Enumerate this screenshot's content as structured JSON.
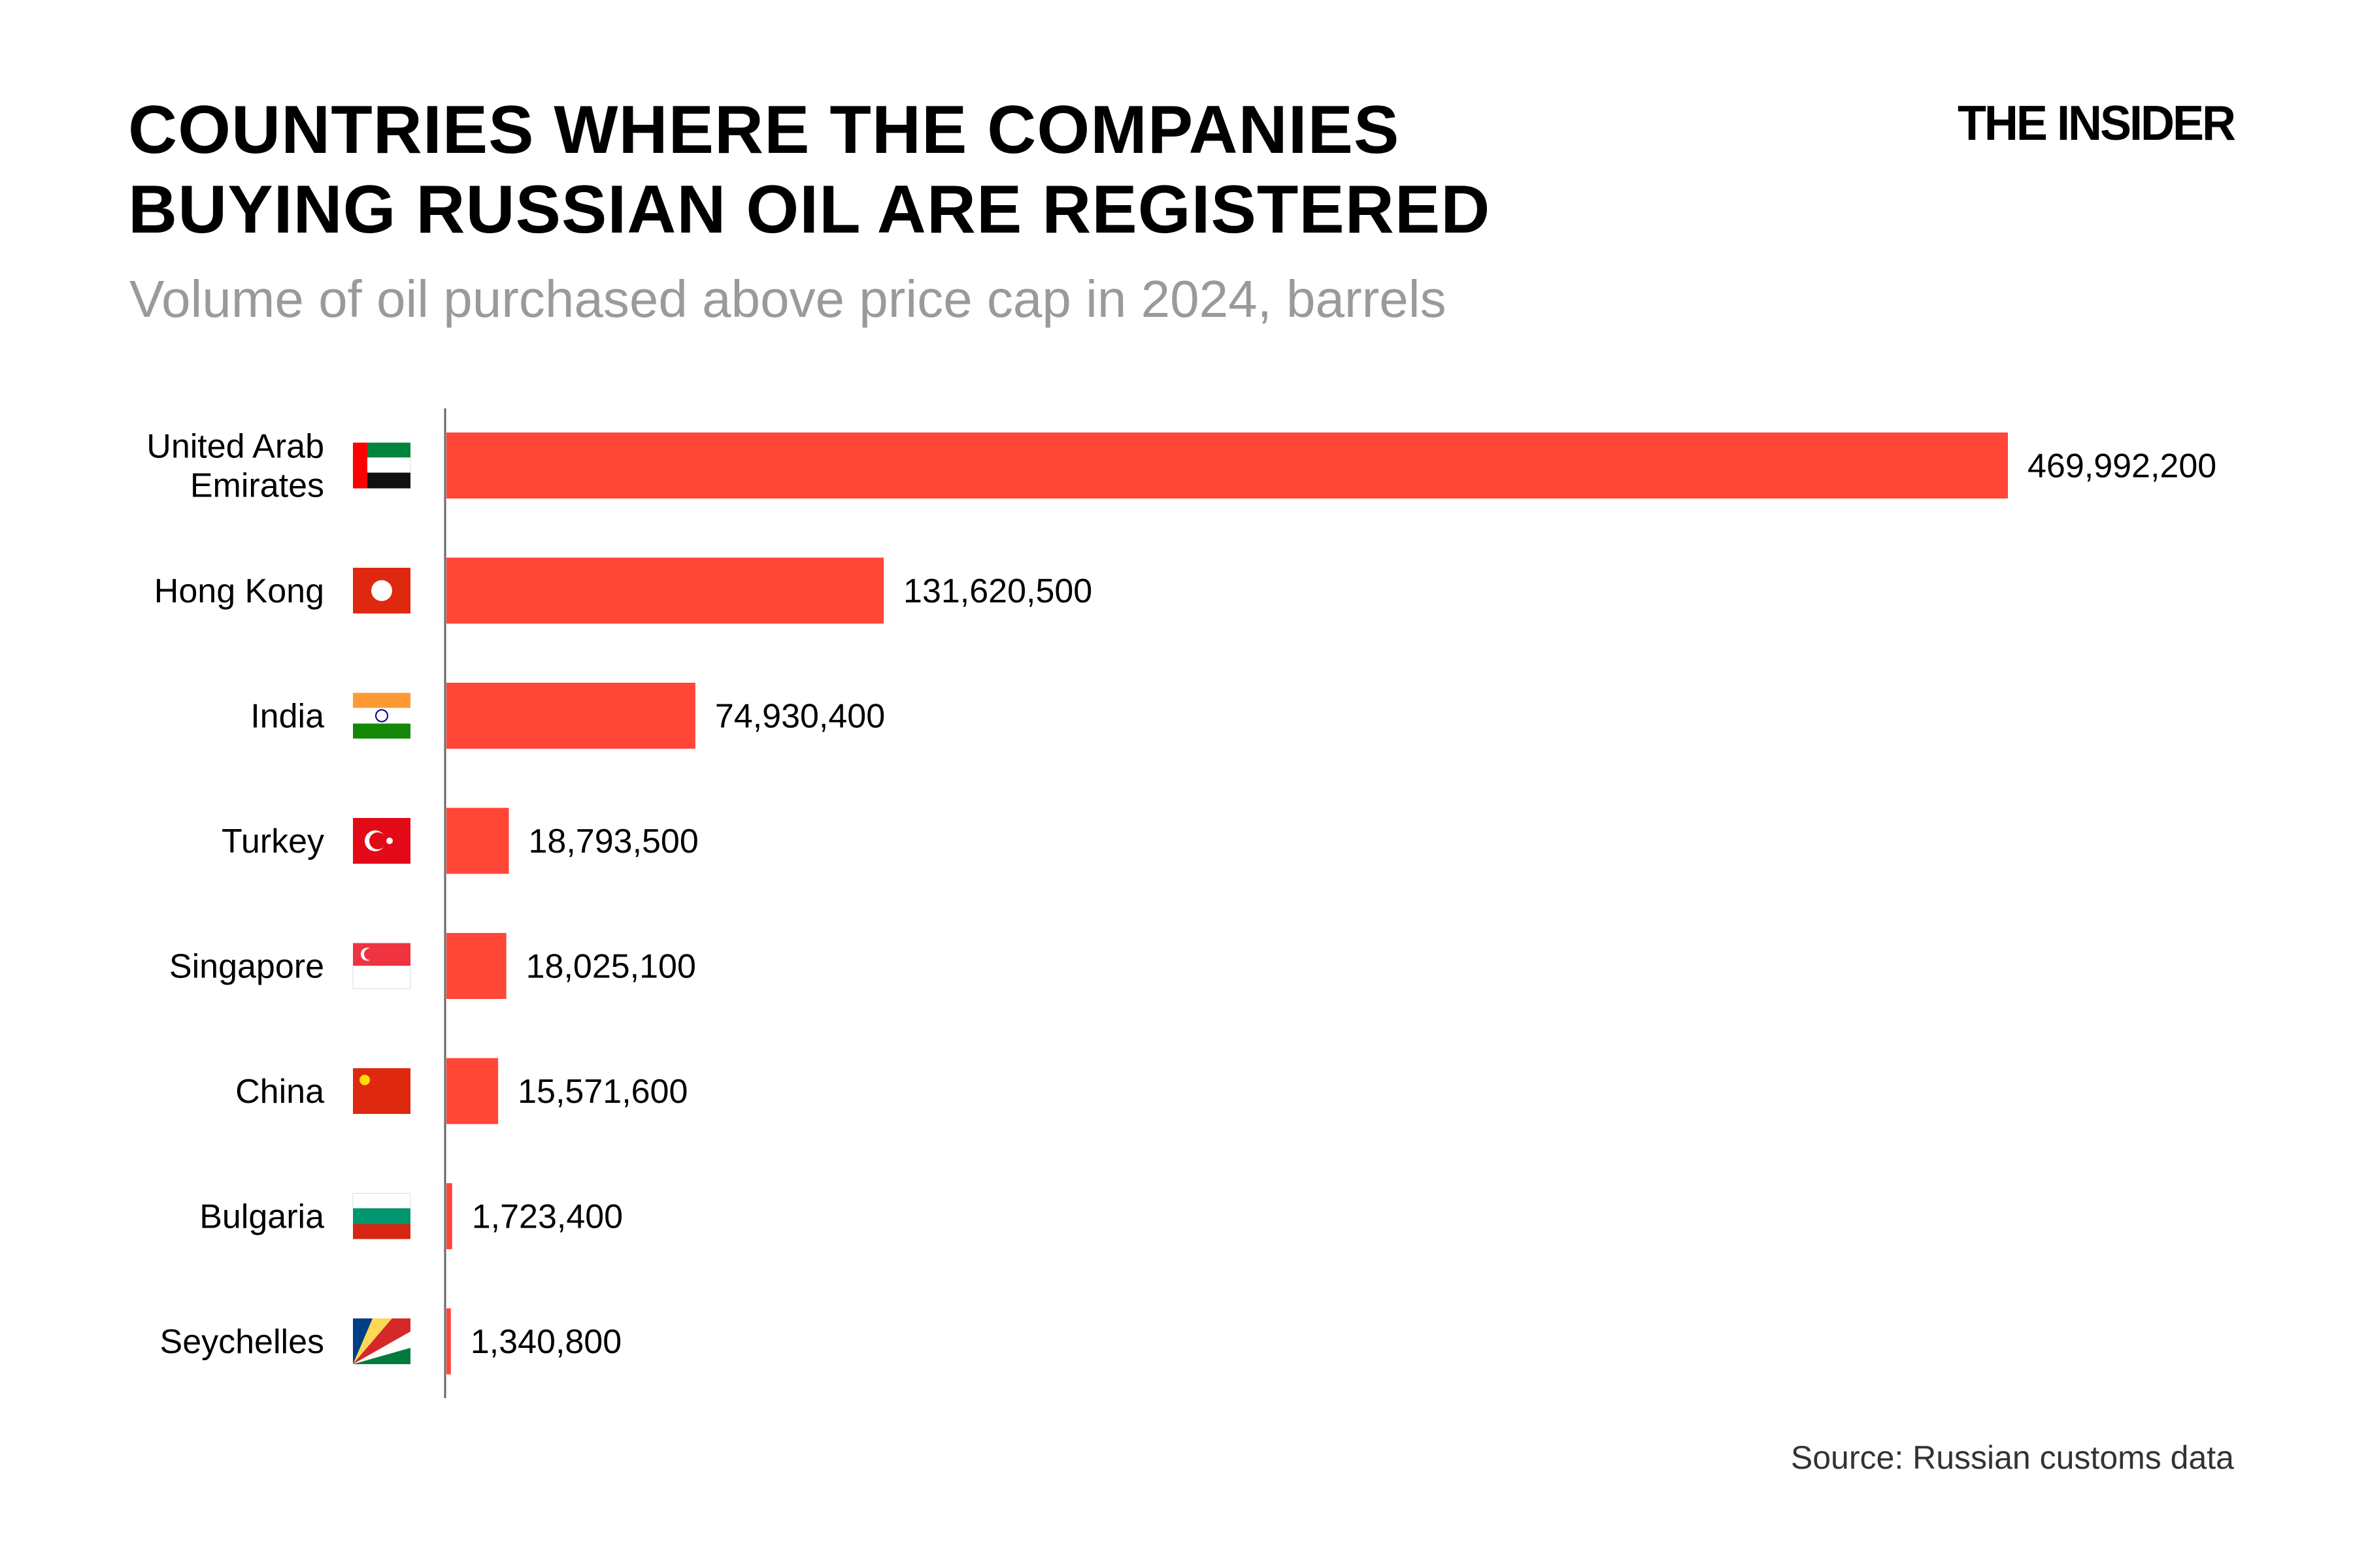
{
  "title_lines": [
    "COUNTRIES WHERE THE COMPANIES",
    "BUYING RUSSIAN OIL ARE REGISTERED"
  ],
  "subtitle": "Volume of oil purchased above price cap in 2024, barrels",
  "logo": "THE INSIDER",
  "source": "Source: Russian customs data",
  "colors": {
    "bar": "#FF4637",
    "axis": "#666666",
    "subtitle": "#9a9a9a"
  },
  "chart_data": {
    "type": "bar",
    "orientation": "horizontal",
    "categories": [
      "United Arab Emirates",
      "Hong Kong",
      "India",
      "Turkey",
      "Singapore",
      "China",
      "Bulgaria",
      "Seychelles"
    ],
    "flags": [
      "flag-uae",
      "flag-hong-kong",
      "flag-india",
      "flag-turkey",
      "flag-singapore",
      "flag-china",
      "flag-bulgaria",
      "flag-seychelles"
    ],
    "values": [
      469992200,
      131620500,
      74930400,
      18793500,
      18025100,
      15571600,
      1723400,
      1340800
    ],
    "value_labels": [
      "469,992,200",
      "131,620,500",
      "74,930,400",
      "18,793,500",
      "18,025,100",
      "15,571,600",
      "1,723,400",
      "1,340,800"
    ],
    "title": "COUNTRIES WHERE THE COMPANIES BUYING RUSSIAN OIL ARE REGISTERED",
    "subtitle": "Volume of oil purchased above price cap in 2024, barrels",
    "xlabel": "",
    "ylabel": "",
    "xlim": [
      0,
      469992200
    ],
    "grid": false,
    "legend": "none"
  }
}
